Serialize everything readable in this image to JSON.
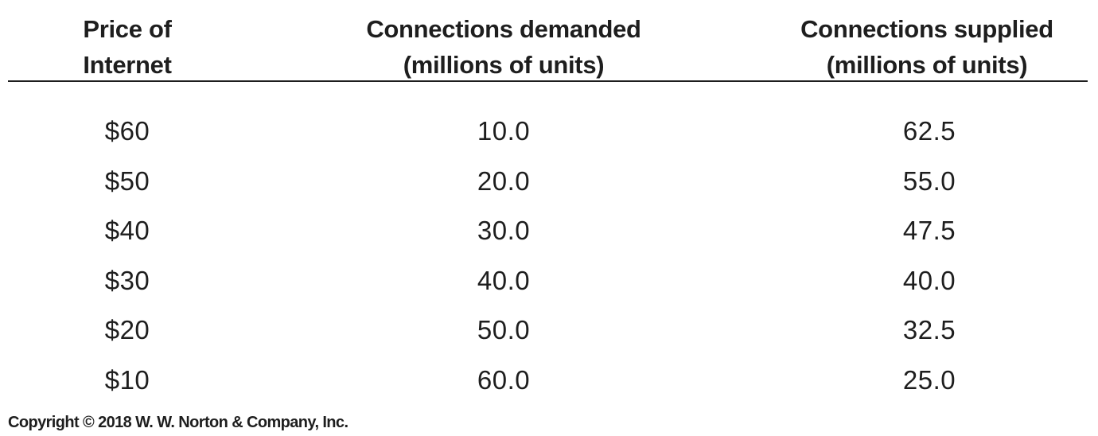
{
  "table": {
    "headers": [
      {
        "line1": "Price of",
        "line2": "Internet"
      },
      {
        "line1": "Connections demanded",
        "line2": "(millions of units)"
      },
      {
        "line1": "Connections supplied",
        "line2": "(millions of units)"
      }
    ],
    "rows": [
      {
        "price": "$60",
        "demanded": "10.0",
        "supplied": "62.5"
      },
      {
        "price": "$50",
        "demanded": "20.0",
        "supplied": "55.0"
      },
      {
        "price": "$40",
        "demanded": "30.0",
        "supplied": "47.5"
      },
      {
        "price": "$30",
        "demanded": "40.0",
        "supplied": "40.0"
      },
      {
        "price": "$20",
        "demanded": "50.0",
        "supplied": "32.5"
      },
      {
        "price": "$10",
        "demanded": "60.0",
        "supplied": "25.0"
      }
    ]
  },
  "footer": {
    "copyright": "Copyright © 2018 W. W. Norton & Company, Inc."
  }
}
